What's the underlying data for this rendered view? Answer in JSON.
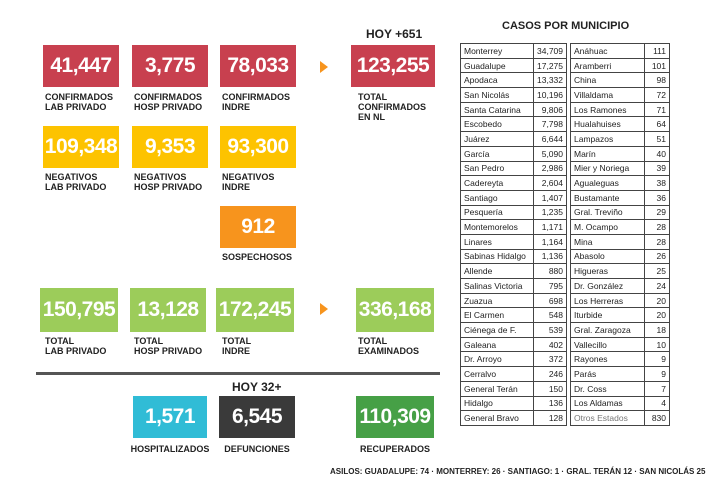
{
  "hoy_top": "HOY +651",
  "hoy_bottom": "HOY 32+",
  "row1": [
    {
      "value": "41,447",
      "label": "CONFIRMADOS\nLAB PRIVADO"
    },
    {
      "value": "3,775",
      "label": "CONFIRMADOS\nHOSP PRIVADO"
    },
    {
      "value": "78,033",
      "label": "CONFIRMADOS\nINDRE"
    }
  ],
  "total_confirmados": {
    "value": "123,255",
    "label": "TOTAL\nCONFIRMADOS\nEN NL"
  },
  "row2": [
    {
      "value": "109,348",
      "label": "NEGATIVOS\nLAB PRIVADO"
    },
    {
      "value": "9,353",
      "label": "NEGATIVOS\nHOSP PRIVADO"
    },
    {
      "value": "93,300",
      "label": "NEGATIVOS\nINDRE"
    }
  ],
  "sospechosos": {
    "value": "912",
    "label": "SOSPECHOSOS"
  },
  "row4": [
    {
      "value": "150,795",
      "label": "TOTAL\nLAB PRIVADO"
    },
    {
      "value": "13,128",
      "label": "TOTAL\nHOSP PRIVADO"
    },
    {
      "value": "172,245",
      "label": "TOTAL\nINDRE"
    }
  ],
  "total_examinados": {
    "value": "336,168",
    "label": "TOTAL\nEXAMINADOS"
  },
  "hospitalizados": {
    "value": "1,571",
    "label": "HOSPITALIZADOS"
  },
  "defunciones": {
    "value": "6,545",
    "label": "DEFUNCIONES"
  },
  "recuperados": {
    "value": "110,309",
    "label": "RECUPERADOS"
  },
  "municipios_title": "CASOS POR MUNICIPIO",
  "municipios_left": [
    [
      "Monterrey",
      "34,709"
    ],
    [
      "Guadalupe",
      "17,275"
    ],
    [
      "Apodaca",
      "13,332"
    ],
    [
      "San Nicolás",
      "10,196"
    ],
    [
      "Santa Catarina",
      "9,806"
    ],
    [
      "Escobedo",
      "7,798"
    ],
    [
      "Juárez",
      "6,644"
    ],
    [
      "García",
      "5,090"
    ],
    [
      "San Pedro",
      "2,986"
    ],
    [
      "Cadereyta",
      "2,604"
    ],
    [
      "Santiago",
      "1,407"
    ],
    [
      "Pesquería",
      "1,235"
    ],
    [
      "Montemorelos",
      "1,171"
    ],
    [
      "Linares",
      "1,164"
    ],
    [
      "Sabinas Hidalgo",
      "1,136"
    ],
    [
      "Allende",
      "880"
    ],
    [
      "Salinas Victoria",
      "795"
    ],
    [
      "Zuazua",
      "698"
    ],
    [
      "El Carmen",
      "548"
    ],
    [
      "Ciénega de F.",
      "539"
    ],
    [
      "Galeana",
      "402"
    ],
    [
      "Dr. Arroyo",
      "372"
    ],
    [
      "Cerralvo",
      "246"
    ],
    [
      "General Terán",
      "150"
    ],
    [
      "Hidalgo",
      "136"
    ],
    [
      "General Bravo",
      "128"
    ]
  ],
  "municipios_right": [
    [
      "Anáhuac",
      "111"
    ],
    [
      "Aramberri",
      "101"
    ],
    [
      "China",
      "98"
    ],
    [
      "Villaldama",
      "72"
    ],
    [
      "Los Ramones",
      "71"
    ],
    [
      "Hualahuises",
      "64"
    ],
    [
      "Lampazos",
      "51"
    ],
    [
      "Marín",
      "40"
    ],
    [
      "Mier y Noriega",
      "39"
    ],
    [
      "Agualeguas",
      "38"
    ],
    [
      "Bustamante",
      "36"
    ],
    [
      "Gral. Treviño",
      "29"
    ],
    [
      "M. Ocampo",
      "28"
    ],
    [
      "Mina",
      "28"
    ],
    [
      "Abasolo",
      "26"
    ],
    [
      "Higueras",
      "25"
    ],
    [
      "Dr. González",
      "24"
    ],
    [
      "Los Herreras",
      "20"
    ],
    [
      "Iturbide",
      "20"
    ],
    [
      "Gral. Zaragoza",
      "18"
    ],
    [
      "Vallecillo",
      "10"
    ],
    [
      "Rayones",
      "9"
    ],
    [
      "Parás",
      "9"
    ],
    [
      "Dr. Coss",
      "7"
    ],
    [
      "Los Aldamas",
      "4"
    ],
    [
      "Otros Estados",
      "830"
    ]
  ],
  "asilos": "ASILOS: GUADALUPE: 74 · MONTERREY: 26 · SANTIAGO: 1 · GRAL. TERÁN 12 · SAN NICOLÁS 25"
}
